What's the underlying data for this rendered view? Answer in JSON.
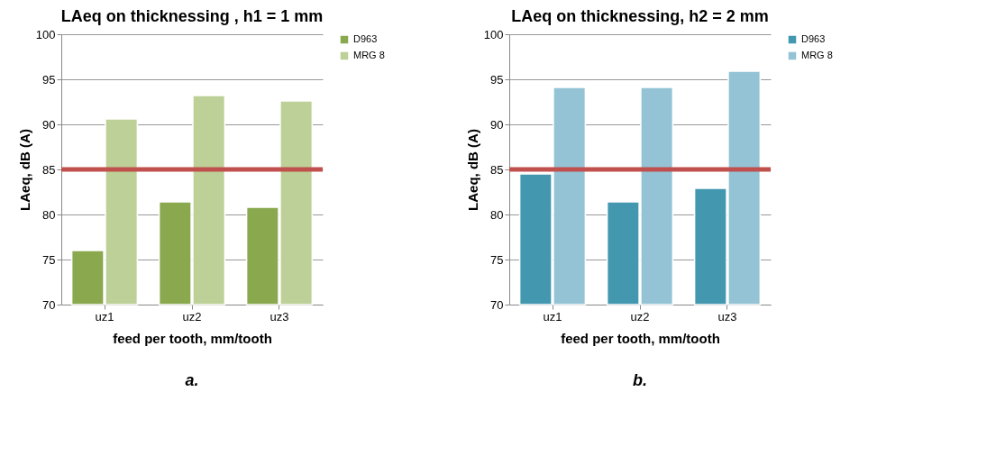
{
  "chart_data": [
    {
      "type": "bar",
      "title": "LAeq on thicknessing , h1 = 1 mm",
      "xlabel": "feed per tooth, mm/tooth",
      "ylabel": "LAeq, dB (A)",
      "categories": [
        "uz1",
        "uz2",
        "uz3"
      ],
      "series": [
        {
          "name": "D963",
          "color": "#8aa84e",
          "values": [
            76.0,
            81.4,
            80.8
          ]
        },
        {
          "name": "MRG 8",
          "color": "#bcd097",
          "values": [
            90.6,
            93.2,
            92.6
          ]
        }
      ],
      "ylim": [
        70,
        100
      ],
      "yticks": [
        70,
        75,
        80,
        85,
        90,
        95,
        100
      ],
      "grid": "y",
      "legend": "right",
      "ref_lines": [
        {
          "axis": "y",
          "value": 85,
          "color": "#c0504d"
        }
      ],
      "annotations": [
        "a."
      ]
    },
    {
      "type": "bar",
      "title": "LAeq on thicknessing, h2 = 2 mm",
      "xlabel": "feed per tooth, mm/tooth",
      "ylabel": "LAeq, dB (A)",
      "categories": [
        "uz1",
        "uz2",
        "uz3"
      ],
      "series": [
        {
          "name": "D963",
          "color": "#4398b0",
          "values": [
            84.5,
            81.4,
            82.9
          ]
        },
        {
          "name": "MRG 8",
          "color": "#93c3d5",
          "values": [
            94.1,
            94.1,
            95.9
          ]
        }
      ],
      "ylim": [
        70,
        100
      ],
      "yticks": [
        70,
        75,
        80,
        85,
        90,
        95,
        100
      ],
      "grid": "y",
      "legend": "right",
      "ref_lines": [
        {
          "axis": "y",
          "value": 85,
          "color": "#c0504d"
        }
      ],
      "annotations": [
        "b."
      ]
    }
  ]
}
